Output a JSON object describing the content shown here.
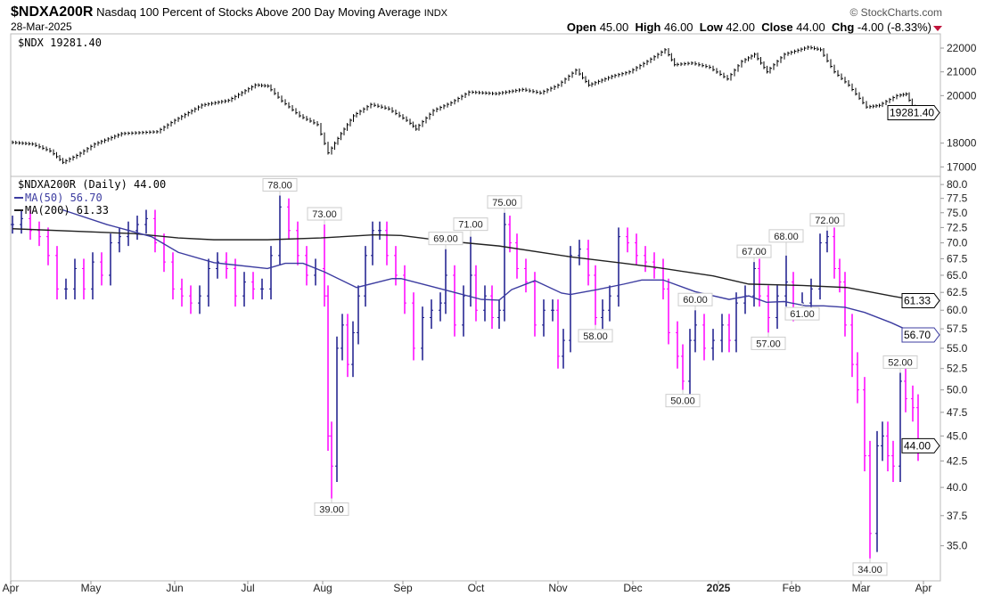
{
  "header": {
    "symbol": "$NDXA200R",
    "description": "Nasdaq 100 Percent of Stocks Above 200 Day Moving Average",
    "exchange": "INDX",
    "date": "28-Mar-2025",
    "brand": "© StockCharts.com",
    "open_label": "Open",
    "open": "45.00",
    "high_label": "High",
    "high": "46.00",
    "low_label": "Low",
    "low": "42.00",
    "close_label": "Close",
    "close": "44.00",
    "chg_label": "Chg",
    "chg": "-4.00 (-8.33%)",
    "down_color": "#c0143c"
  },
  "chart_data": [
    {
      "type": "line",
      "name": "price-pane",
      "legend": "$NDX 19281.40",
      "last_value_tag": "19281.40",
      "yticks": [
        "22000",
        "21000",
        "20000",
        "18000",
        "17000"
      ],
      "ytick_values": [
        22000,
        21000,
        20000,
        18000,
        17000
      ],
      "ylim": [
        16600,
        22600
      ],
      "x_unit": "trading day index (0 = 1-Apr-2024)",
      "points": [
        [
          0,
          18040
        ],
        [
          6.5,
          17960
        ],
        [
          11.5,
          17670
        ],
        [
          15,
          17190
        ],
        [
          19,
          17480
        ],
        [
          24,
          17960
        ],
        [
          31.5,
          18400
        ],
        [
          41.5,
          18480
        ],
        [
          46.5,
          18960
        ],
        [
          54,
          19600
        ],
        [
          61.5,
          19800
        ],
        [
          69,
          20450
        ],
        [
          72.5,
          20400
        ],
        [
          76.5,
          19780
        ],
        [
          81.5,
          19150
        ],
        [
          86.5,
          18780
        ],
        [
          89.5,
          17590
        ],
        [
          93,
          18400
        ],
        [
          96.5,
          19150
        ],
        [
          101.5,
          19630
        ],
        [
          106.5,
          19440
        ],
        [
          111.5,
          18960
        ],
        [
          114,
          18590
        ],
        [
          119,
          19370
        ],
        [
          124,
          19700
        ],
        [
          129,
          20150
        ],
        [
          136.5,
          20080
        ],
        [
          144,
          20260
        ],
        [
          149,
          20110
        ],
        [
          154,
          20440
        ],
        [
          159,
          21070
        ],
        [
          162.5,
          20440
        ],
        [
          169,
          20810
        ],
        [
          174,
          21000
        ],
        [
          179,
          21440
        ],
        [
          184,
          21930
        ],
        [
          186.5,
          21300
        ],
        [
          191.5,
          21370
        ],
        [
          196.5,
          21190
        ],
        [
          201.5,
          20700
        ],
        [
          205.5,
          21440
        ],
        [
          209,
          21740
        ],
        [
          212.5,
          21000
        ],
        [
          217.5,
          21740
        ],
        [
          224,
          22040
        ],
        [
          227.5,
          21930
        ],
        [
          231.5,
          21000
        ],
        [
          235.5,
          20440
        ],
        [
          240.5,
          19520
        ],
        [
          244,
          19590
        ],
        [
          249,
          20000
        ],
        [
          251.5,
          20070
        ],
        [
          254,
          19281.4
        ]
      ],
      "color": "#000000"
    },
    {
      "type": "bar",
      "name": "ndxa200r-pane",
      "legend": "$NDXA200R (Daily) 44.00",
      "scale": "log",
      "ylim": [
        32.3,
        81.5
      ],
      "yticks": [
        "80.0",
        "77.5",
        "75.0",
        "72.5",
        "70.0",
        "67.5",
        "65.0",
        "62.5",
        "60.0",
        "57.5",
        "55.0",
        "52.5",
        "50.0",
        "47.5",
        "45.0",
        "42.5",
        "40.0",
        "37.5",
        "35.0"
      ],
      "ytick_values": [
        80,
        77.5,
        75,
        72.5,
        70,
        67.5,
        65,
        62.5,
        60,
        57.5,
        55,
        52.5,
        50,
        47.5,
        45,
        42.5,
        40,
        37.5,
        35
      ],
      "up_color": "#1a1a8c",
      "down_color": "#ff00ff",
      "closes": [
        [
          0,
          73
        ],
        [
          2.5,
          74
        ],
        [
          5,
          72
        ],
        [
          7.5,
          71
        ],
        [
          10,
          68
        ],
        [
          12.5,
          63
        ],
        [
          15,
          63
        ],
        [
          17.5,
          66
        ],
        [
          20,
          63
        ],
        [
          22.5,
          67
        ],
        [
          25,
          65
        ],
        [
          27.5,
          70
        ],
        [
          30,
          71
        ],
        [
          32.5,
          72
        ],
        [
          35,
          73
        ],
        [
          37.5,
          74
        ],
        [
          40,
          70
        ],
        [
          42.5,
          67
        ],
        [
          45,
          63
        ],
        [
          47.5,
          62
        ],
        [
          50,
          61
        ],
        [
          52.5,
          62
        ],
        [
          55,
          66
        ],
        [
          57.5,
          67
        ],
        [
          60,
          66
        ],
        [
          62.5,
          62
        ],
        [
          65,
          64
        ],
        [
          67.5,
          63
        ],
        [
          70,
          63
        ],
        [
          72.5,
          68
        ],
        [
          75,
          76
        ],
        [
          77.5,
          72
        ],
        [
          80,
          68
        ],
        [
          82.5,
          65
        ],
        [
          85,
          66
        ],
        [
          87.5,
          62
        ],
        [
          88.5,
          45
        ],
        [
          89.5,
          42
        ],
        [
          91,
          55
        ],
        [
          92.5,
          58
        ],
        [
          94,
          53
        ],
        [
          95.5,
          57
        ],
        [
          97,
          62
        ],
        [
          99,
          68
        ],
        [
          101,
          72
        ],
        [
          103,
          72
        ],
        [
          105,
          68
        ],
        [
          107.5,
          65
        ],
        [
          110,
          61
        ],
        [
          112.5,
          55
        ],
        [
          115,
          59
        ],
        [
          117.5,
          60
        ],
        [
          120,
          61
        ],
        [
          121.5,
          65
        ],
        [
          124,
          58
        ],
        [
          126.5,
          62
        ],
        [
          128.5,
          65
        ],
        [
          130,
          60
        ],
        [
          132.5,
          62
        ],
        [
          134.5,
          59
        ],
        [
          136.5,
          60
        ],
        [
          138,
          73
        ],
        [
          139.5,
          70
        ],
        [
          141.5,
          66
        ],
        [
          144,
          64
        ],
        [
          146.5,
          58
        ],
        [
          149,
          60
        ],
        [
          151.5,
          60
        ],
        [
          153,
          54
        ],
        [
          154.5,
          56
        ],
        [
          156.5,
          68
        ],
        [
          159,
          69
        ],
        [
          161.5,
          65
        ],
        [
          163.5,
          59
        ],
        [
          165.5,
          60
        ],
        [
          167.5,
          62
        ],
        [
          170,
          71
        ],
        [
          172.5,
          70
        ],
        [
          175,
          68
        ],
        [
          177.5,
          67
        ],
        [
          180,
          66
        ],
        [
          182.5,
          63
        ],
        [
          184,
          57
        ],
        [
          186.5,
          54
        ],
        [
          188,
          51
        ],
        [
          190,
          56
        ],
        [
          191.5,
          58
        ],
        [
          194,
          55
        ],
        [
          196.5,
          56
        ],
        [
          199,
          58
        ],
        [
          201,
          56
        ],
        [
          203,
          61
        ],
        [
          205.5,
          62
        ],
        [
          208,
          66
        ],
        [
          209.5,
          62
        ],
        [
          212,
          59
        ],
        [
          214.5,
          62
        ],
        [
          217,
          64
        ],
        [
          219,
          60
        ],
        [
          221.5,
          61
        ],
        [
          224,
          63
        ],
        [
          226.5,
          70
        ],
        [
          228.5,
          71
        ],
        [
          230.5,
          66
        ],
        [
          232,
          64
        ],
        [
          233.5,
          58
        ],
        [
          235.5,
          53
        ],
        [
          237,
          50
        ],
        [
          239,
          43
        ],
        [
          240.5,
          36
        ],
        [
          242.5,
          44
        ],
        [
          244,
          45
        ],
        [
          245.5,
          43
        ],
        [
          247,
          42
        ],
        [
          249,
          51
        ],
        [
          250.5,
          49
        ],
        [
          252.5,
          48
        ],
        [
          254,
          44
        ]
      ],
      "annotations": [
        {
          "day": 75,
          "value": 78,
          "label": "78.00",
          "pos": "above"
        },
        {
          "day": 87.5,
          "value": 73,
          "label": "73.00",
          "pos": "above"
        },
        {
          "day": 89.5,
          "value": 39,
          "label": "39.00",
          "pos": "below"
        },
        {
          "day": 121.5,
          "value": 69,
          "label": "69.00",
          "pos": "above"
        },
        {
          "day": 128.5,
          "value": 71,
          "label": "71.00",
          "pos": "above"
        },
        {
          "day": 138,
          "value": 75,
          "label": "75.00",
          "pos": "above"
        },
        {
          "day": 163.5,
          "value": 58,
          "label": "58.00",
          "pos": "below"
        },
        {
          "day": 188,
          "value": 50,
          "label": "50.00",
          "pos": "below"
        },
        {
          "day": 191.5,
          "value": 60,
          "label": "60.00",
          "pos": "above"
        },
        {
          "day": 208,
          "value": 67,
          "label": "67.00",
          "pos": "above"
        },
        {
          "day": 212,
          "value": 57,
          "label": "57.00",
          "pos": "below"
        },
        {
          "day": 217,
          "value": 68,
          "label": "68.00",
          "pos": "above"
        },
        {
          "day": 221.5,
          "value": 61,
          "label": "61.00",
          "pos": "below"
        },
        {
          "day": 228.5,
          "value": 72,
          "label": "72.00",
          "pos": "above"
        },
        {
          "day": 240.5,
          "value": 34,
          "label": "34.00",
          "pos": "below"
        },
        {
          "day": 249,
          "value": 52,
          "label": "52.00",
          "pos": "above"
        }
      ],
      "ma50": {
        "legend": "MA(50) 56.70",
        "tag": "56.70",
        "color": "#3c3ca0",
        "points": [
          [
            14,
            75.5
          ],
          [
            26.5,
            73
          ],
          [
            39,
            71
          ],
          [
            46.5,
            68.5
          ],
          [
            56.5,
            66.9
          ],
          [
            71.5,
            66
          ],
          [
            76.5,
            66.8
          ],
          [
            81.5,
            66.8
          ],
          [
            87.5,
            65.5
          ],
          [
            96.5,
            63.2
          ],
          [
            106.5,
            64.5
          ],
          [
            109,
            64.5
          ],
          [
            116.5,
            63.5
          ],
          [
            131.5,
            61.5
          ],
          [
            136.5,
            61.4
          ],
          [
            140,
            62.9
          ],
          [
            146.5,
            64.2
          ],
          [
            154,
            62.4
          ],
          [
            156.5,
            62.2
          ],
          [
            164,
            62.9
          ],
          [
            171.5,
            63.7
          ],
          [
            176.5,
            64.3
          ],
          [
            182.5,
            64.3
          ],
          [
            191.5,
            62.6
          ],
          [
            201,
            61.5
          ],
          [
            206.5,
            62
          ],
          [
            211.5,
            61.1
          ],
          [
            216.5,
            61.2
          ],
          [
            222.5,
            60.6
          ],
          [
            227.5,
            60.6
          ],
          [
            233.5,
            60.4
          ],
          [
            239,
            59.7
          ],
          [
            246.5,
            58.3
          ],
          [
            254,
            56.7
          ]
        ]
      },
      "ma200": {
        "legend": "MA(200) 61.33",
        "tag": "61.33",
        "color": "#222222",
        "points": [
          [
            0,
            72.3
          ],
          [
            34,
            71.5
          ],
          [
            46.5,
            70.8
          ],
          [
            56.5,
            70.5
          ],
          [
            71.5,
            70.5
          ],
          [
            86.5,
            70.8
          ],
          [
            101.5,
            71.3
          ],
          [
            109,
            71.2
          ],
          [
            121.5,
            70.3
          ],
          [
            136.5,
            69.5
          ],
          [
            156.5,
            67.8
          ],
          [
            171.5,
            66.8
          ],
          [
            181.5,
            66.1
          ],
          [
            196.5,
            64.9
          ],
          [
            206.5,
            63.7
          ],
          [
            221.5,
            63.5
          ],
          [
            234,
            63.2
          ],
          [
            246.5,
            62
          ],
          [
            254,
            61.33
          ]
        ]
      }
    }
  ],
  "x_axis": {
    "ticks": [
      {
        "day": -0.5,
        "label": "Apr"
      },
      {
        "day": 22,
        "label": "May"
      },
      {
        "day": 45.5,
        "label": "Jun"
      },
      {
        "day": 66,
        "label": "Jul"
      },
      {
        "day": 87,
        "label": "Aug"
      },
      {
        "day": 109.5,
        "label": "Sep"
      },
      {
        "day": 130,
        "label": "Oct"
      },
      {
        "day": 153,
        "label": "Nov"
      },
      {
        "day": 174,
        "label": "Dec"
      },
      {
        "day": 198,
        "label": "2025",
        "bold": true
      },
      {
        "day": 218.5,
        "label": "Feb"
      },
      {
        "day": 238,
        "label": "Mar"
      },
      {
        "day": 255.5,
        "label": "Apr"
      }
    ]
  }
}
